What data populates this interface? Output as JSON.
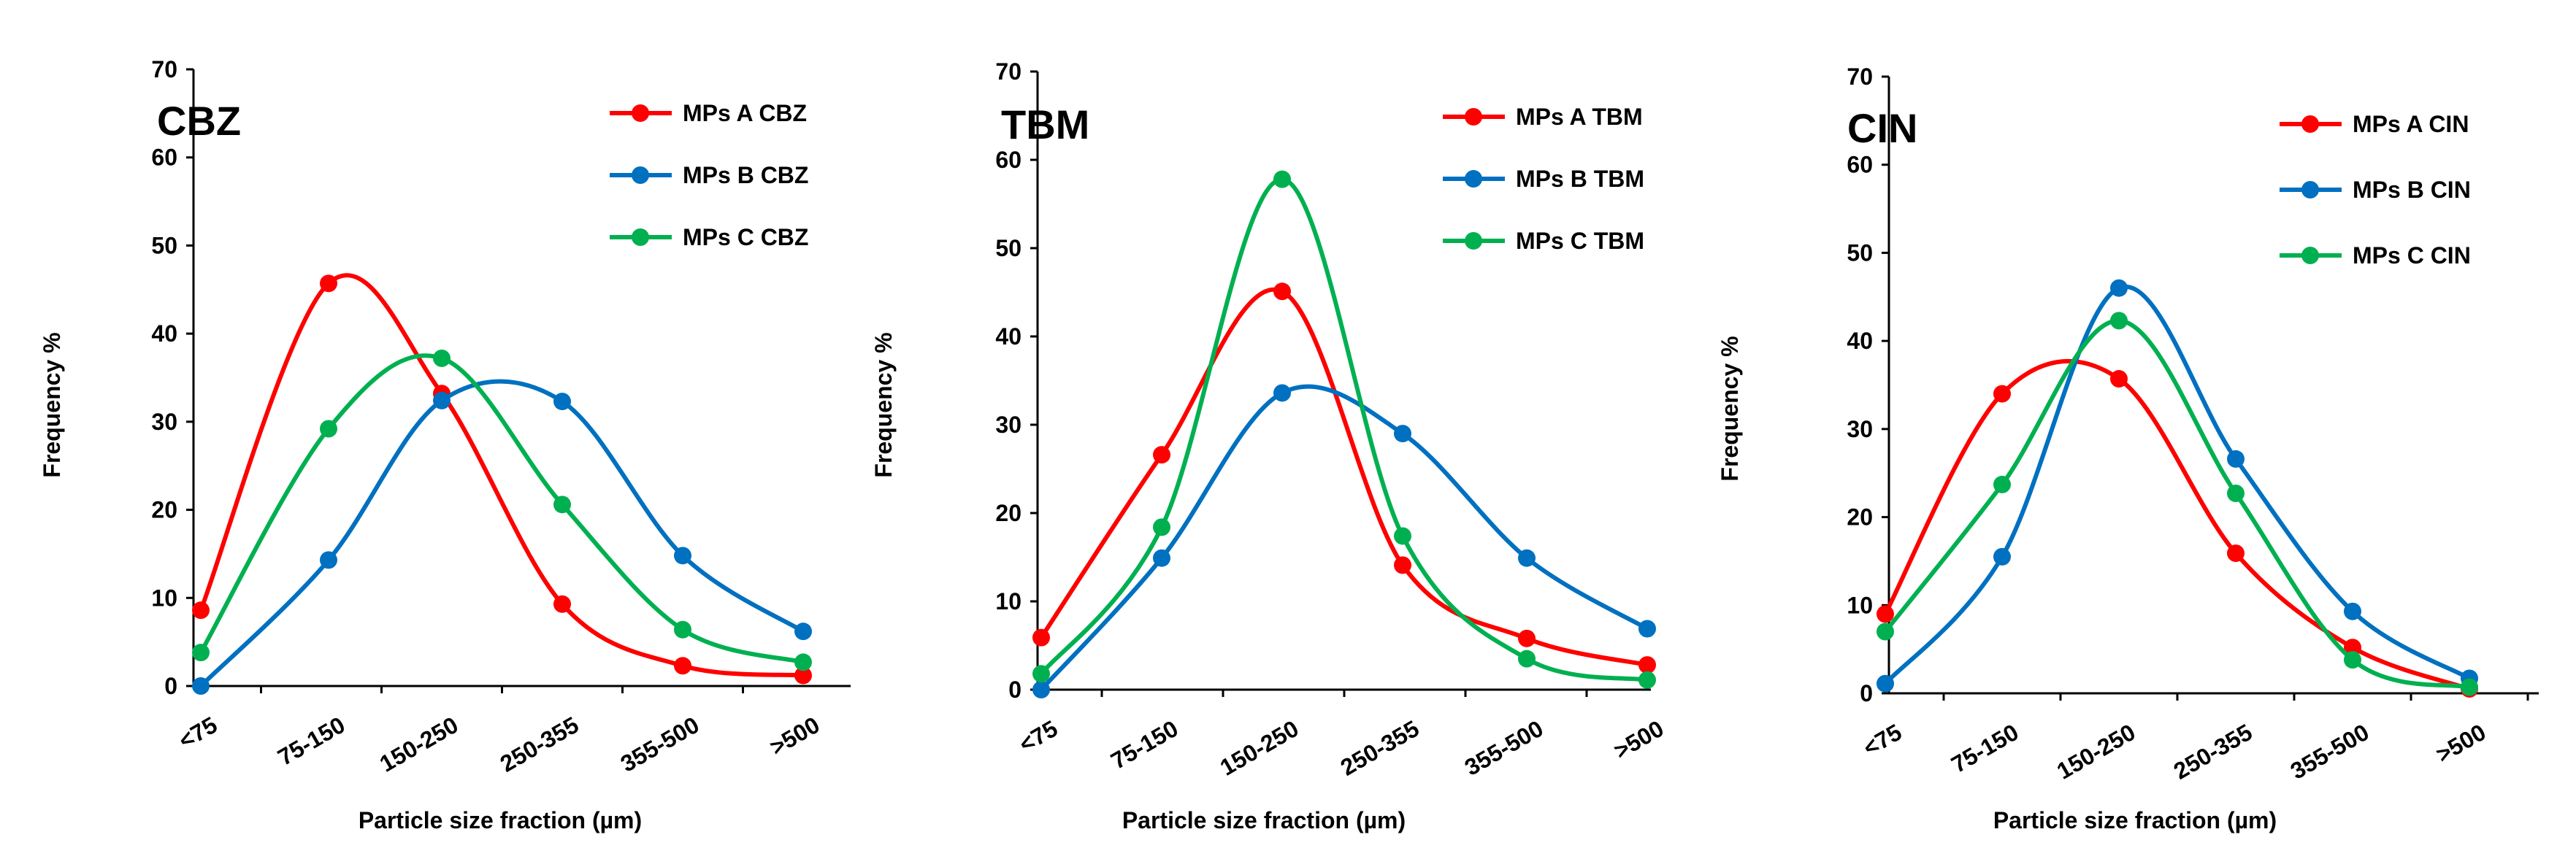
{
  "chart_data": [
    {
      "type": "line",
      "title": "CBZ",
      "xlabel": "Particle size fraction (µm)",
      "ylabel": "Frequency %",
      "categories": [
        "<75",
        "75-150",
        "150-250",
        "250-355",
        "355-500",
        ">500"
      ],
      "ylim": [
        0,
        70
      ],
      "yticks": [
        0,
        10,
        20,
        30,
        40,
        50,
        60,
        70
      ],
      "legend_position": "top-right",
      "series": [
        {
          "name": "MPs A CBZ",
          "color": "#ff0000",
          "values": [
            8.6,
            45.7,
            33.2,
            9.3,
            2.3,
            1.2
          ]
        },
        {
          "name": "MPs B CBZ",
          "color": "#0070c0",
          "values": [
            0,
            14.3,
            32.4,
            32.3,
            14.8,
            6.2
          ]
        },
        {
          "name": "MPs C CBZ",
          "color": "#00b050",
          "values": [
            3.8,
            29.2,
            37.2,
            20.6,
            6.4,
            2.7
          ]
        }
      ]
    },
    {
      "type": "line",
      "title": "TBM",
      "xlabel": "Particle size fraction (µm)",
      "ylabel": "Frequency %",
      "categories": [
        "<75",
        "75-150",
        "150-250",
        "250-355",
        "355-500",
        ">500"
      ],
      "ylim": [
        0,
        70
      ],
      "yticks": [
        0,
        10,
        20,
        30,
        40,
        50,
        60,
        70
      ],
      "legend_position": "top-right",
      "series": [
        {
          "name": "MPs A TBM",
          "color": "#ff0000",
          "values": [
            5.9,
            26.6,
            45.1,
            14.1,
            5.8,
            2.8
          ]
        },
        {
          "name": "MPs B TBM",
          "color": "#0070c0",
          "values": [
            0,
            14.9,
            33.6,
            29,
            14.9,
            6.9
          ]
        },
        {
          "name": "MPs C TBM",
          "color": "#00b050",
          "values": [
            1.8,
            18.4,
            57.8,
            17.4,
            3.5,
            1.1
          ]
        }
      ]
    },
    {
      "type": "line",
      "title": "CIN",
      "xlabel": "Particle size fraction (µm)",
      "ylabel": "Frequency %",
      "categories": [
        "<75",
        "75-150",
        "150-250",
        "250-355",
        "355-500",
        ">500"
      ],
      "ylim": [
        0,
        70
      ],
      "yticks": [
        0,
        10,
        20,
        30,
        40,
        50,
        60,
        70
      ],
      "legend_position": "top-right",
      "series": [
        {
          "name": "MPs A CIN",
          "color": "#ff0000",
          "values": [
            9,
            34,
            35.7,
            15.9,
            5.2,
            0.5
          ]
        },
        {
          "name": "MPs B CIN",
          "color": "#0070c0",
          "values": [
            1.1,
            15.5,
            46,
            26.6,
            9.3,
            1.7
          ]
        },
        {
          "name": "MPs C CIN",
          "color": "#00b050",
          "values": [
            7,
            23.7,
            42.3,
            22.7,
            3.8,
            0.7
          ]
        }
      ]
    }
  ]
}
